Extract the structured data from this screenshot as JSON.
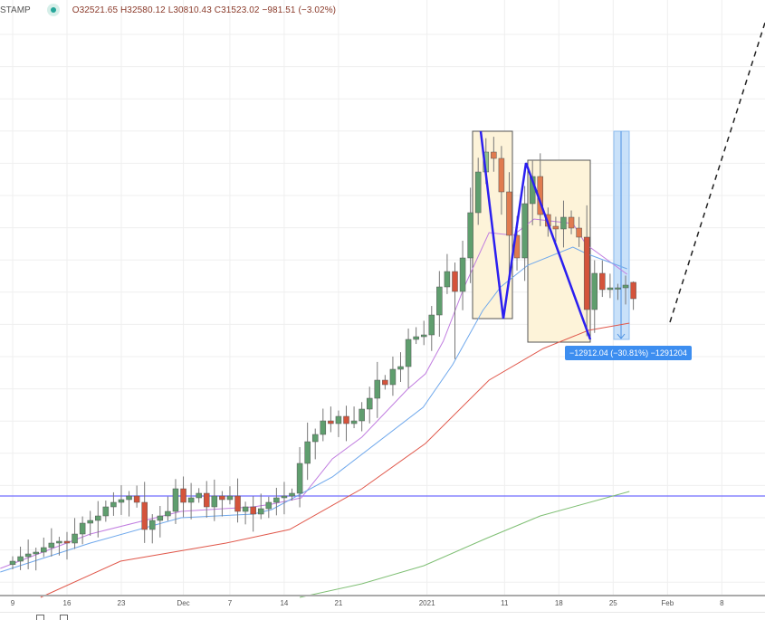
{
  "header": {
    "symbol": "STAMP",
    "ohlc": "O32521.65 H32580.12 L30810.43 C31523.02 −981.51 (−3.02%)"
  },
  "measure": {
    "label": "−12912.04 (−30.81%) −1291204"
  },
  "colors": {
    "up": "#5f9e6e",
    "down": "#d4533b",
    "down_light": "#e07b4f",
    "up_light": "#8fc08a",
    "hline": "#6f6cff",
    "zigzag": "#2b1ff0",
    "box": "#fdf3d9",
    "measure": "#bcd9f7"
  },
  "chart_data": {
    "type": "candlestick",
    "title": "STAMP daily",
    "x_start_label": "9",
    "x_ticks": [
      {
        "i": 0,
        "label": "9"
      },
      {
        "i": 7,
        "label": "16"
      },
      {
        "i": 14,
        "label": "23"
      },
      {
        "i": 22,
        "label": "Dec"
      },
      {
        "i": 28,
        "label": "7"
      },
      {
        "i": 35,
        "label": "14"
      },
      {
        "i": 42,
        "label": "21"
      },
      {
        "i": 53.4,
        "label": "2021"
      },
      {
        "i": 63.4,
        "label": "11"
      },
      {
        "i": 70.4,
        "label": "18"
      },
      {
        "i": 77.4,
        "label": "25"
      },
      {
        "i": 84.4,
        "label": "Feb"
      },
      {
        "i": 91.4,
        "label": "8"
      }
    ],
    "closes": [
      15214,
      15495,
      15664,
      15776,
      16057,
      16338,
      16450,
      16338,
      16900,
      17574,
      17743,
      18023,
      18585,
      18866,
      19035,
      19259,
      18866,
      17181,
      17743,
      18023,
      18304,
      19709,
      18866,
      19147,
      19428,
      18585,
      19259,
      19035,
      19259,
      18304,
      18585,
      18136,
      18473,
      18866,
      19147,
      19259,
      19428,
      21282,
      22630,
      23080,
      23922,
      23754,
      24203,
      23754,
      23922,
      24653,
      25327,
      26450,
      26170,
      27125,
      27293,
      28979,
      29147,
      29259,
      30495,
      32237,
      33192,
      31956,
      34035,
      36844,
      39372,
      40608,
      40215,
      38136,
      35439,
      34035,
      37406,
      39091,
      36731,
      36001,
      35833,
      36563,
      35889,
      35327,
      30833,
      33080,
      32068,
      32181,
      32181,
      32349,
      31507
    ],
    "first_open": 15000,
    "last_candle": {
      "open": 32521.65,
      "high": 32580.12,
      "low": 30810.43,
      "close": 31523.02,
      "change": -981.51,
      "change_pct": -3.02
    },
    "horizontal_level": 19259,
    "moving_averages": [
      {
        "name": "ma-fast",
        "color": "#c17ee0",
        "points": [
          [
            -1.6,
            14765
          ],
          [
            10,
            16900
          ],
          [
            21.7,
            18304
          ],
          [
            31,
            18585
          ],
          [
            33.4,
            18754
          ],
          [
            37.2,
            19147
          ],
          [
            41.2,
            21563
          ],
          [
            45,
            22911
          ],
          [
            50.9,
            25889
          ],
          [
            53.2,
            26844
          ],
          [
            55.5,
            28866
          ],
          [
            58.2,
            32237
          ],
          [
            61.4,
            35608
          ],
          [
            64.5,
            35439
          ],
          [
            67.2,
            36451
          ],
          [
            72.2,
            36170
          ],
          [
            73.9,
            34877
          ],
          [
            79.2,
            33024
          ]
        ]
      },
      {
        "name": "ma-medium",
        "color": "#6fa8ec",
        "points": [
          [
            -1.6,
            14540
          ],
          [
            10,
            16338
          ],
          [
            21.7,
            17911
          ],
          [
            31,
            18136
          ],
          [
            33.4,
            18417
          ],
          [
            41.2,
            20439
          ],
          [
            52.9,
            24765
          ],
          [
            56.7,
            27406
          ],
          [
            60.6,
            30776
          ],
          [
            62.9,
            32237
          ],
          [
            66.4,
            33585
          ],
          [
            72.2,
            34709
          ],
          [
            73.9,
            34316
          ],
          [
            79.2,
            33361
          ]
        ]
      },
      {
        "name": "ma-slow",
        "color": "#e0574a",
        "points": [
          [
            3.6,
            12967
          ],
          [
            13.9,
            15214
          ],
          [
            27.5,
            16338
          ],
          [
            35.7,
            17181
          ],
          [
            45,
            19709
          ],
          [
            53.2,
            22518
          ],
          [
            61.4,
            26450
          ],
          [
            68.4,
            28417
          ],
          [
            74.2,
            29540
          ],
          [
            79.5,
            29990
          ]
        ]
      },
      {
        "name": "ma-200",
        "color": "#7fbf74",
        "points": [
          [
            37,
            12967
          ],
          [
            45,
            13810
          ],
          [
            53,
            14934
          ],
          [
            61,
            16619
          ],
          [
            68,
            18023
          ],
          [
            79.5,
            19541
          ]
        ]
      }
    ],
    "measurement": {
      "from": 41900,
      "to": 28988,
      "change": -12912.04,
      "change_pct": -30.81
    },
    "grid": true
  }
}
